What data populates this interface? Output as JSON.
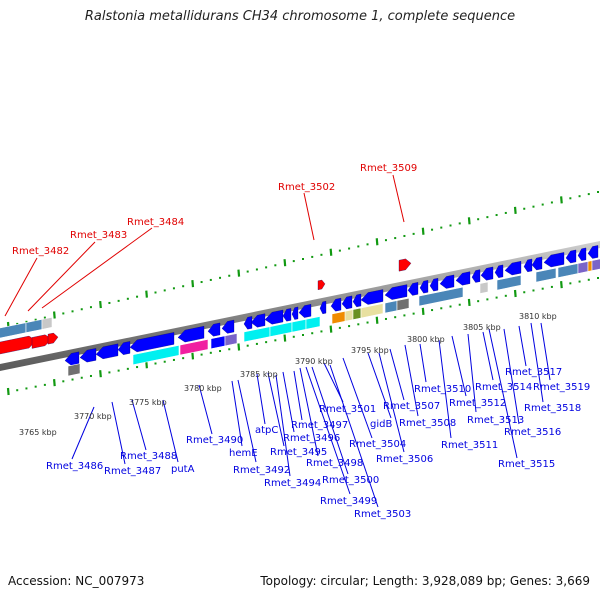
{
  "title": "Ralstonia metallidurans CH34 chromosome 1, complete sequence",
  "footer": {
    "accession": "Accession: NC_007973",
    "summary": "Topology: circular; Length: 3,928,089 bp; Genes: 3,669"
  },
  "colors": {
    "forward_gene": "#ff0000",
    "reverse_gene": "#0000ff",
    "tick": "#119911",
    "backbone": "#8a8a8a",
    "forward_label": "#e00000",
    "reverse_label": "#0000e0",
    "cog_steelblue": "#4a86b8",
    "cog_cyan": "#00f0f0",
    "cog_magenta": "#f020a0",
    "cog_slate": "#7a64c8",
    "cog_orange": "#f08c00",
    "cog_khaki": "#e8e0a0",
    "cog_olive": "#6a9020",
    "cog_gray": "#707070",
    "cog_lightgray": "#c8c8c8"
  },
  "kbp_labels": [
    "3765 kbp",
    "3770 kbp",
    "3775 kbp",
    "3780 kbp",
    "3785 kbp",
    "3790 kbp",
    "3795 kbp",
    "3800 kbp",
    "3805 kbp",
    "3810 kbp"
  ],
  "forward_labels": [
    "Rmet_3482",
    "Rmet_3483",
    "Rmet_3484",
    "Rmet_3502",
    "Rmet_3509"
  ],
  "reverse_labels": [
    "Rmet_3486",
    "Rmet_3487",
    "Rmet_3488",
    "putA",
    "Rmet_3490",
    "hemE",
    "Rmet_3492",
    "atpC",
    "Rmet_3494",
    "Rmet_3495",
    "Rmet_3496",
    "Rmet_3497",
    "Rmet_3498",
    "Rmet_3499",
    "Rmet_3500",
    "Rmet_3501",
    "Rmet_3503",
    "Rmet_3504",
    "gidB",
    "Rmet_3506",
    "Rmet_3507",
    "Rmet_3508",
    "Rmet_3510",
    "Rmet_3511",
    "Rmet_3512",
    "Rmet_3513",
    "Rmet_3514",
    "Rmet_3515",
    "Rmet_3516",
    "Rmet_3517",
    "Rmet_3518",
    "Rmet_3519"
  ]
}
